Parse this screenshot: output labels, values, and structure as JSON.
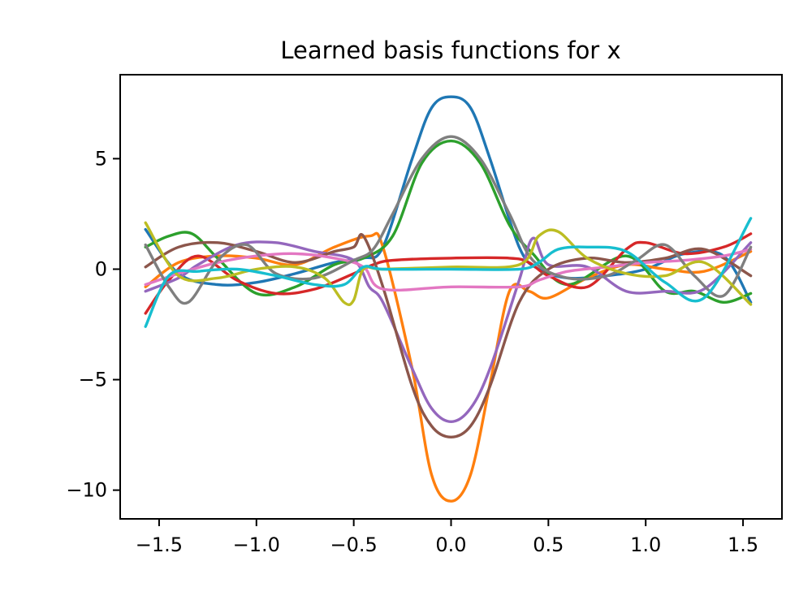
{
  "chart_data": {
    "type": "line",
    "title": "Learned basis functions for x",
    "xlabel": "",
    "ylabel": "",
    "xlim": [
      -1.7,
      1.7
    ],
    "ylim": [
      -11.3,
      8.8
    ],
    "xticks": [
      -1.5,
      -1.0,
      -0.5,
      0.0,
      0.5,
      1.0,
      1.5
    ],
    "xtick_labels": [
      "−1.5",
      "−1.0",
      "−0.5",
      "0.0",
      "0.5",
      "1.0",
      "1.5"
    ],
    "yticks": [
      -10,
      -5,
      0,
      5
    ],
    "ytick_labels": [
      "−10",
      "−5",
      "0",
      "5"
    ],
    "grid": false,
    "legend": "none",
    "series": [
      {
        "color": "#1f77b4",
        "x": [
          -1.57,
          -1.4,
          -1.2,
          -1.0,
          -0.8,
          -0.6,
          -0.45,
          -0.35,
          -0.2,
          -0.1,
          0.0,
          0.1,
          0.2,
          0.35,
          0.45,
          0.6,
          0.8,
          1.0,
          1.2,
          1.4,
          1.54
        ],
        "y": [
          1.8,
          -0.2,
          -0.7,
          -0.6,
          -0.2,
          0.3,
          0.5,
          1.0,
          5.0,
          7.3,
          7.8,
          7.3,
          5.0,
          1.0,
          0.0,
          -0.4,
          -0.3,
          0.0,
          0.7,
          0.6,
          -1.5
        ]
      },
      {
        "color": "#ff7f0e",
        "x": [
          -1.57,
          -1.4,
          -1.2,
          -1.0,
          -0.8,
          -0.6,
          -0.42,
          -0.35,
          -0.2,
          -0.1,
          0.0,
          0.1,
          0.2,
          0.3,
          0.4,
          0.5,
          0.7,
          0.9,
          1.1,
          1.3,
          1.54
        ],
        "y": [
          -0.8,
          0.3,
          0.6,
          0.5,
          0.2,
          1.0,
          1.5,
          1.0,
          -4.5,
          -9.3,
          -10.5,
          -9.3,
          -5.2,
          -1.0,
          -1.0,
          -1.3,
          -0.4,
          0.2,
          0.0,
          -0.1,
          0.8
        ]
      },
      {
        "color": "#2ca02c",
        "x": [
          -1.57,
          -1.45,
          -1.33,
          -1.2,
          -1.0,
          -0.8,
          -0.6,
          -0.45,
          -0.3,
          -0.15,
          0.0,
          0.15,
          0.3,
          0.42,
          0.6,
          0.9,
          1.1,
          1.25,
          1.4,
          1.54
        ],
        "y": [
          1.0,
          1.5,
          1.6,
          0.5,
          -1.1,
          -0.8,
          0.2,
          0.5,
          1.5,
          4.8,
          5.8,
          4.8,
          2.0,
          0.7,
          -0.7,
          0.6,
          -1.0,
          -1.0,
          -1.5,
          -1.1
        ]
      },
      {
        "color": "#d62728",
        "x": [
          -1.57,
          -1.45,
          -1.3,
          -1.1,
          -0.9,
          -0.7,
          -0.5,
          -0.4,
          -0.3,
          0.0,
          0.3,
          0.4,
          0.5,
          0.7,
          0.9,
          1.0,
          1.2,
          1.4,
          1.54
        ],
        "y": [
          -2.0,
          -0.5,
          0.6,
          -0.5,
          -1.1,
          -0.9,
          -0.2,
          0.2,
          0.4,
          0.5,
          0.5,
          0.3,
          -0.3,
          -0.8,
          0.9,
          1.2,
          0.7,
          1.0,
          1.6
        ]
      },
      {
        "color": "#9467bd",
        "x": [
          -1.57,
          -1.4,
          -1.3,
          -1.1,
          -0.9,
          -0.7,
          -0.5,
          -0.42,
          -0.35,
          -0.2,
          -0.1,
          0.0,
          0.1,
          0.2,
          0.35,
          0.42,
          0.5,
          0.7,
          0.9,
          1.1,
          1.3,
          1.54
        ],
        "y": [
          -1.0,
          -0.4,
          0.2,
          1.1,
          1.2,
          0.8,
          0.4,
          -0.8,
          -1.5,
          -4.5,
          -6.3,
          -6.9,
          -6.3,
          -4.5,
          -0.5,
          1.4,
          0.2,
          0.1,
          -1.0,
          -1.0,
          -0.9,
          1.2
        ]
      },
      {
        "color": "#8c564b",
        "x": [
          -1.57,
          -1.4,
          -1.2,
          -1.0,
          -0.8,
          -0.6,
          -0.5,
          -0.45,
          -0.35,
          -0.2,
          -0.1,
          0.0,
          0.1,
          0.2,
          0.35,
          0.5,
          0.7,
          0.9,
          1.1,
          1.3,
          1.54
        ],
        "y": [
          0.1,
          1.0,
          1.2,
          0.8,
          0.3,
          0.8,
          1.0,
          1.5,
          -0.8,
          -5.3,
          -7.1,
          -7.6,
          -7.1,
          -5.3,
          -1.5,
          0.0,
          0.5,
          0.3,
          0.5,
          0.9,
          -0.3
        ]
      },
      {
        "color": "#e377c2",
        "x": [
          -1.57,
          -1.4,
          -1.2,
          -1.0,
          -0.8,
          -0.6,
          -0.45,
          -0.35,
          0.0,
          0.35,
          0.45,
          0.6,
          0.8,
          1.0,
          1.2,
          1.4,
          1.54
        ],
        "y": [
          -0.7,
          -0.2,
          0.3,
          0.6,
          0.7,
          0.5,
          0.1,
          -0.9,
          -0.8,
          -0.8,
          -0.5,
          -0.1,
          0.1,
          0.3,
          0.4,
          0.6,
          0.9
        ]
      },
      {
        "color": "#7f7f7f",
        "x": [
          -1.57,
          -1.45,
          -1.35,
          -1.2,
          -1.05,
          -0.9,
          -0.7,
          -0.5,
          -0.4,
          -0.3,
          -0.15,
          0.0,
          0.15,
          0.3,
          0.42,
          0.6,
          0.8,
          0.95,
          1.1,
          1.25,
          1.4,
          1.54
        ],
        "y": [
          1.1,
          -0.8,
          -1.5,
          0.4,
          1.1,
          -0.2,
          -0.4,
          0.4,
          0.9,
          2.5,
          5.0,
          6.0,
          5.0,
          2.5,
          0.4,
          -0.4,
          -0.3,
          0.4,
          1.1,
          -0.3,
          -1.2,
          1.0
        ]
      },
      {
        "color": "#bcbd22",
        "x": [
          -1.57,
          -1.4,
          -1.2,
          -1.0,
          -0.8,
          -0.65,
          -0.55,
          -0.5,
          -0.45,
          -0.35,
          0.0,
          0.35,
          0.45,
          0.55,
          0.7,
          0.9,
          1.1,
          1.3,
          1.54
        ],
        "y": [
          2.1,
          -0.3,
          -0.4,
          0.0,
          0.1,
          -0.4,
          -1.5,
          -1.4,
          0.0,
          0.0,
          0.1,
          0.2,
          1.5,
          1.7,
          0.5,
          -0.2,
          -0.3,
          0.3,
          -1.6
        ]
      },
      {
        "color": "#17becf",
        "x": [
          -1.57,
          -1.45,
          -1.3,
          -1.1,
          -0.9,
          -0.7,
          -0.55,
          -0.45,
          -0.35,
          0.0,
          0.35,
          0.45,
          0.55,
          0.7,
          0.9,
          1.1,
          1.3,
          1.54
        ],
        "y": [
          -2.6,
          -0.3,
          -0.1,
          0.0,
          -0.3,
          -0.7,
          -0.7,
          0.1,
          0.0,
          0.0,
          0.0,
          0.3,
          0.9,
          1.0,
          0.8,
          -0.6,
          -1.3,
          2.3
        ]
      }
    ]
  }
}
